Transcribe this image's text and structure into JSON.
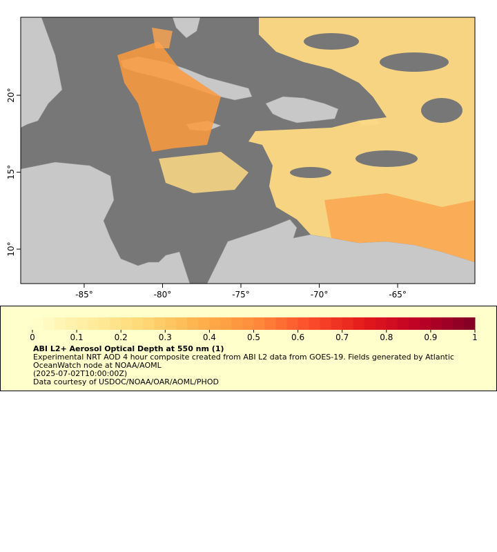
{
  "map": {
    "xlim": [
      -89.05,
      -60.07
    ],
    "ylim": [
      7.76,
      25.07
    ],
    "xticks": [
      {
        "value": -85,
        "label": "-85°"
      },
      {
        "value": -80,
        "label": "-80°"
      },
      {
        "value": -75,
        "label": "-75°"
      },
      {
        "value": -70,
        "label": "-70°"
      },
      {
        "value": -65,
        "label": "-65°"
      }
    ],
    "yticks": [
      {
        "value": 10,
        "label": "10°"
      },
      {
        "value": 15,
        "label": "15°"
      },
      {
        "value": 20,
        "label": "20°"
      }
    ]
  },
  "colorbar": {
    "lim": [
      0,
      1
    ],
    "ticks": [
      0,
      0.1,
      0.2,
      0.3,
      0.4,
      0.5,
      0.6,
      0.7,
      0.8,
      0.9,
      1
    ],
    "colors": [
      "#ffffcc",
      "#ffeda0",
      "#fed976",
      "#feb24c",
      "#fd8d3c",
      "#fc4e2a",
      "#e31a1c",
      "#bd0026",
      "#800026"
    ]
  },
  "legend": {
    "title": "ABI L2+ Aerosol Optical Depth at 550 nm (1)",
    "description": "Experimental NRT AOD 4 hour composite created from ABI L2 data from GOES-19. Fields generated by Atlantic OceanWatch node at NOAA/AOML",
    "time": "(2025-07-02T10:00:00Z)",
    "credit": "Data courtesy of USDOC/NOAA/OAR/AOML/PHOD"
  }
}
